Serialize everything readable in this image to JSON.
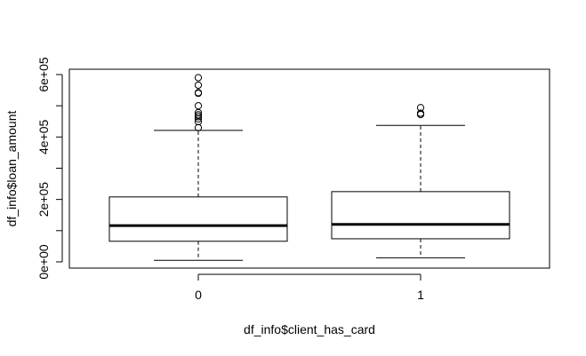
{
  "chart_data": {
    "type": "boxplot",
    "title": "",
    "xlabel": "df_info$client_has_card",
    "ylabel": "df_info$loan_amount",
    "ylim": [
      -20000,
      617000
    ],
    "y_ticks": [
      0,
      200000,
      400000,
      600000
    ],
    "y_minor_ticks": [
      100000,
      300000,
      500000
    ],
    "y_tick_labels": [
      "0e+00",
      "2e+05",
      "4e+05",
      "6e+05"
    ],
    "categories": [
      "0",
      "1"
    ],
    "boxes": [
      {
        "category": "0",
        "whisker_low": 5000,
        "q1": 66000,
        "median": 116000,
        "q3": 208000,
        "whisker_high": 421000,
        "outliers": [
          430000,
          449000,
          458000,
          465000,
          471000,
          478000,
          500000,
          540000,
          542000,
          566000,
          590000
        ]
      },
      {
        "category": "1",
        "whisker_low": 13000,
        "q1": 74000,
        "median": 120000,
        "q3": 225000,
        "whisker_high": 437000,
        "outliers": [
          472000,
          476000,
          494000
        ]
      }
    ]
  }
}
